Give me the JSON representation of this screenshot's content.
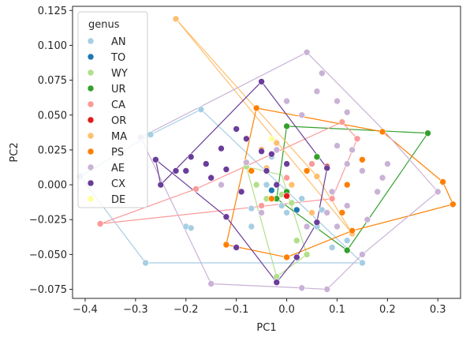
{
  "chart_data": {
    "type": "scatter",
    "xlabel": "PC1",
    "ylabel": "PC2",
    "xlim": [
      -0.425,
      0.345
    ],
    "ylim": [
      -0.0815,
      0.128
    ],
    "xticks": [
      -0.4,
      -0.3,
      -0.2,
      -0.1,
      0.0,
      0.1,
      0.2,
      0.3
    ],
    "xtick_labels": [
      "−0.4",
      "−0.3",
      "−0.2",
      "−0.1",
      "0.0",
      "0.1",
      "0.2",
      "0.3"
    ],
    "yticks": [
      -0.075,
      -0.05,
      -0.025,
      0.0,
      0.025,
      0.05,
      0.075,
      0.1,
      0.125
    ],
    "ytick_labels": [
      "−0.075",
      "−0.050",
      "−0.025",
      "0.000",
      "0.025",
      "0.050",
      "0.075",
      "0.100",
      "0.125"
    ],
    "grid": false,
    "legend": {
      "title": "genus",
      "placement": "top-left"
    },
    "series": [
      {
        "name": "AN",
        "color": "#a6cee3",
        "points": [
          [
            -0.41,
            0.006
          ],
          [
            -0.28,
            -0.056
          ],
          [
            -0.27,
            0.036
          ],
          [
            -0.2,
            -0.03
          ],
          [
            -0.19,
            -0.031
          ],
          [
            -0.17,
            0.054
          ],
          [
            -0.07,
            -0.017
          ],
          [
            -0.05,
            -0.02
          ],
          [
            -0.03,
            0.02
          ],
          [
            -0.01,
            -0.015
          ],
          [
            0.03,
            -0.01
          ],
          [
            0.06,
            -0.03
          ],
          [
            0.09,
            -0.045
          ],
          [
            0.15,
            -0.056
          ],
          [
            -0.04,
            0.0
          ],
          [
            0.0,
            -0.02
          ],
          [
            0.12,
            -0.04
          ],
          [
            -0.07,
            -0.03
          ],
          [
            0.07,
            -0.018
          ]
        ],
        "hull": [
          [
            -0.41,
            0.006
          ],
          [
            -0.28,
            -0.056
          ],
          [
            0.15,
            -0.056
          ],
          [
            -0.17,
            0.054
          ],
          [
            -0.27,
            0.036
          ]
        ]
      },
      {
        "name": "TO",
        "color": "#1f78b4",
        "points": [
          [
            -0.03,
            -0.004
          ],
          [
            0.02,
            -0.018
          ]
        ],
        "hull": []
      },
      {
        "name": "WY",
        "color": "#b2df8a",
        "points": [
          [
            -0.08,
            0.013
          ],
          [
            -0.06,
            0.0
          ],
          [
            -0.04,
            -0.01
          ],
          [
            -0.02,
            -0.066
          ],
          [
            0.02,
            -0.04
          ],
          [
            0.04,
            -0.05
          ],
          [
            -0.01,
            -0.007
          ],
          [
            0.01,
            -0.013
          ]
        ],
        "hull": [
          [
            -0.08,
            0.013
          ],
          [
            -0.02,
            -0.066
          ],
          [
            0.04,
            -0.05
          ],
          [
            -0.01,
            0.007
          ]
        ]
      },
      {
        "name": "UR",
        "color": "#33a02c",
        "points": [
          [
            0.0,
            0.042
          ],
          [
            0.28,
            0.037
          ],
          [
            0.12,
            -0.047
          ],
          [
            -0.02,
            -0.01
          ],
          [
            0.06,
            0.02
          ],
          [
            0.0,
            -0.005
          ]
        ],
        "hull": [
          [
            0.0,
            0.042
          ],
          [
            0.28,
            0.037
          ],
          [
            0.12,
            -0.047
          ],
          [
            -0.02,
            -0.01
          ]
        ]
      },
      {
        "name": "CA",
        "color": "#fb9a99",
        "points": [
          [
            -0.37,
            -0.028
          ],
          [
            -0.18,
            -0.003
          ],
          [
            0.11,
            0.045
          ],
          [
            0.14,
            0.033
          ],
          [
            0.09,
            -0.01
          ],
          [
            -0.05,
            -0.015
          ],
          [
            0.05,
            0.015
          ],
          [
            0.0,
            0.005
          ]
        ],
        "hull": [
          [
            -0.37,
            -0.028
          ],
          [
            -0.18,
            -0.003
          ],
          [
            0.11,
            0.045
          ],
          [
            0.14,
            0.033
          ],
          [
            0.09,
            -0.01
          ]
        ]
      },
      {
        "name": "OR",
        "color": "#e31a1c",
        "points": [
          [
            0.08,
            0.013
          ],
          [
            0.0,
            -0.008
          ]
        ],
        "hull": []
      },
      {
        "name": "MA",
        "color": "#fdbf6f",
        "points": [
          [
            -0.22,
            0.119
          ],
          [
            0.13,
            -0.035
          ],
          [
            0.06,
            0.006
          ],
          [
            0.01,
            0.0
          ],
          [
            -0.02,
            0.03
          ],
          [
            0.05,
            -0.02
          ],
          [
            -0.04,
            0.012
          ]
        ],
        "hull": [
          [
            -0.22,
            0.119
          ],
          [
            0.13,
            -0.035
          ],
          [
            0.06,
            0.006
          ]
        ]
      },
      {
        "name": "PS",
        "color": "#ff7f00",
        "points": [
          [
            -0.06,
            0.055
          ],
          [
            0.19,
            0.038
          ],
          [
            0.31,
            0.002
          ],
          [
            0.33,
            -0.014
          ],
          [
            0.13,
            -0.033
          ],
          [
            0.0,
            -0.052
          ],
          [
            -0.12,
            -0.043
          ],
          [
            -0.07,
            0.01
          ],
          [
            0.15,
            0.018
          ],
          [
            0.12,
            0.0
          ],
          [
            -0.05,
            0.025
          ],
          [
            0.04,
            0.01
          ],
          [
            0.11,
            -0.02
          ],
          [
            -0.03,
            -0.01
          ]
        ],
        "hull": [
          [
            -0.06,
            0.055
          ],
          [
            0.19,
            0.038
          ],
          [
            0.31,
            0.002
          ],
          [
            0.33,
            -0.014
          ],
          [
            0.13,
            -0.033
          ],
          [
            0.0,
            -0.052
          ],
          [
            -0.12,
            -0.043
          ]
        ]
      },
      {
        "name": "AE",
        "color": "#cab2d6",
        "points": [
          [
            0.04,
            0.095
          ],
          [
            0.3,
            -0.005
          ],
          [
            0.15,
            -0.05
          ],
          [
            0.08,
            -0.075
          ],
          [
            0.03,
            -0.074
          ],
          [
            -0.15,
            -0.071
          ],
          [
            -0.29,
            0.034
          ],
          [
            0.06,
            0.067
          ],
          [
            0.12,
            0.052
          ],
          [
            0.1,
            0.028
          ],
          [
            0.12,
            0.015
          ],
          [
            0.15,
            0.01
          ],
          [
            0.19,
            0.005
          ],
          [
            0.2,
            0.015
          ],
          [
            0.16,
            -0.025
          ],
          [
            0.09,
            -0.005
          ],
          [
            0.13,
            0.025
          ],
          [
            -0.13,
            0.0
          ],
          [
            -0.08,
            0.016
          ],
          [
            -0.05,
            -0.02
          ],
          [
            0.0,
            0.06
          ],
          [
            0.03,
            0.05
          ],
          [
            0.07,
            0.08
          ],
          [
            0.1,
            0.06
          ],
          [
            -0.02,
            0.025
          ],
          [
            0.08,
            -0.02
          ],
          [
            0.12,
            -0.015
          ],
          [
            0.18,
            -0.005
          ],
          [
            0.1,
            -0.03
          ],
          [
            0.04,
            -0.03
          ]
        ],
        "hull": [
          [
            0.04,
            0.095
          ],
          [
            0.19,
            0.04
          ],
          [
            0.3,
            -0.005
          ],
          [
            0.15,
            -0.05
          ],
          [
            0.08,
            -0.075
          ],
          [
            0.03,
            -0.074
          ],
          [
            -0.15,
            -0.071
          ],
          [
            -0.29,
            0.034
          ]
        ]
      },
      {
        "name": "CX",
        "color": "#6a3d9a",
        "points": [
          [
            -0.05,
            0.074
          ],
          [
            0.08,
            0.012
          ],
          [
            0.06,
            -0.027
          ],
          [
            0.02,
            -0.052
          ],
          [
            -0.02,
            -0.07
          ],
          [
            -0.12,
            -0.023
          ],
          [
            -0.25,
            0.0
          ],
          [
            -0.26,
            0.018
          ],
          [
            -0.22,
            0.01
          ],
          [
            -0.2,
            0.01
          ],
          [
            -0.19,
            0.02
          ],
          [
            -0.16,
            0.015
          ],
          [
            -0.12,
            0.011
          ],
          [
            -0.13,
            0.026
          ],
          [
            -0.1,
            0.04
          ],
          [
            -0.08,
            0.033
          ],
          [
            -0.05,
            0.024
          ],
          [
            -0.03,
            0.022
          ],
          [
            -0.02,
            0.0
          ],
          [
            -0.09,
            -0.005
          ],
          [
            -0.1,
            -0.045
          ],
          [
            -0.04,
            0.01
          ],
          [
            0.0,
            0.015
          ],
          [
            -0.15,
            0.005
          ]
        ],
        "hull": [
          [
            -0.05,
            0.074
          ],
          [
            0.08,
            0.012
          ],
          [
            0.06,
            -0.027
          ],
          [
            0.02,
            -0.052
          ],
          [
            -0.02,
            -0.07
          ],
          [
            -0.12,
            -0.023
          ],
          [
            -0.26,
            0.018
          ],
          [
            -0.25,
            0.0
          ]
        ]
      },
      {
        "name": "DE",
        "color": "#ffff99",
        "points": [
          [
            -0.03,
            0.033
          ]
        ],
        "hull": []
      }
    ]
  }
}
